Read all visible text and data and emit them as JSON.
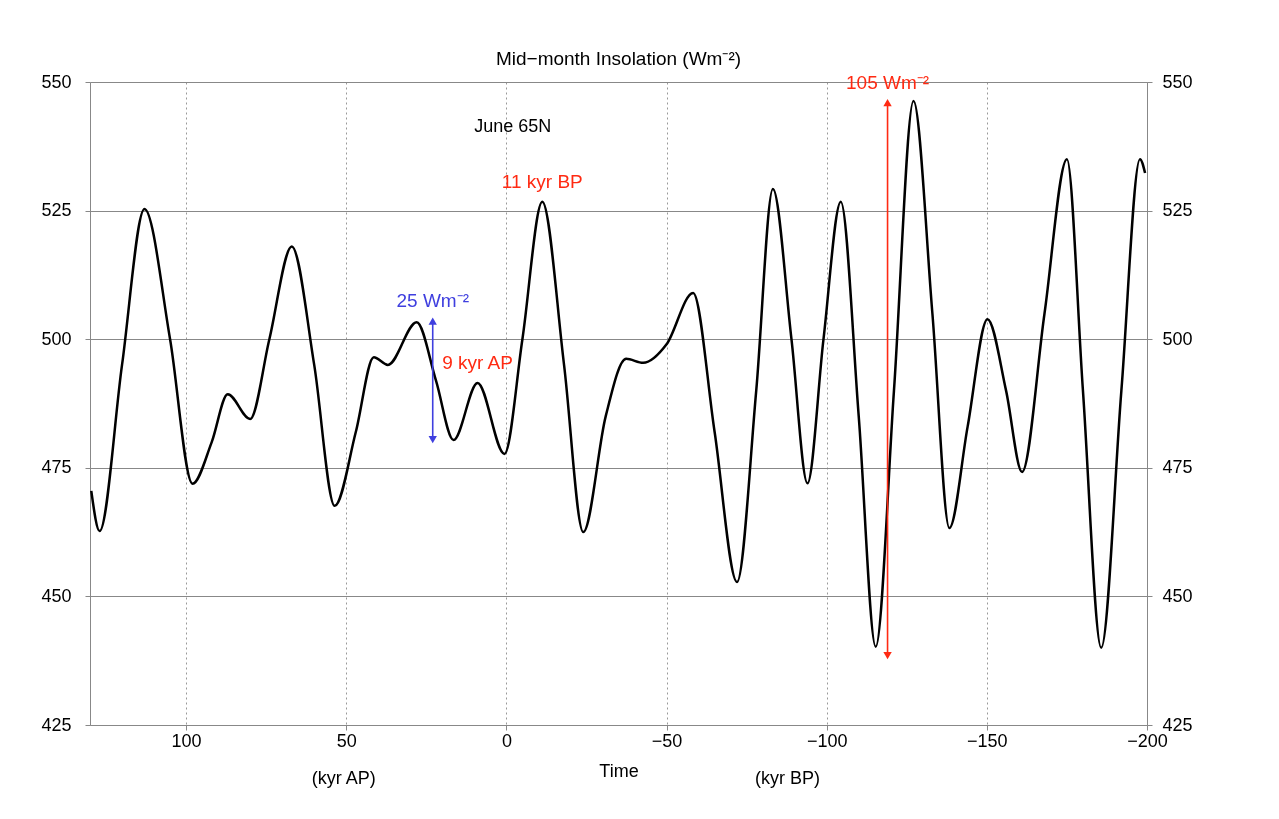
{
  "chart_data": {
    "type": "line",
    "title": "Mid−month Insolation (Wm⁻²)",
    "xlabel": "Time",
    "xlim": [
      130,
      -200
    ],
    "xticks": [
      100,
      50,
      0,
      {
        "value": -50,
        "label": "−50"
      },
      {
        "value": -100,
        "label": "−100"
      },
      {
        "value": -150,
        "label": "−150"
      },
      {
        "value": -200,
        "label": "−200"
      }
    ],
    "ylim": [
      425,
      550
    ],
    "yticks": [
      425,
      450,
      475,
      500,
      525,
      550
    ],
    "y2lim": [
      425,
      550
    ],
    "y2ticks": [
      425,
      450,
      475,
      500,
      525,
      550
    ],
    "grid": true,
    "line_style": "solid",
    "series": [
      {
        "color": "#000000",
        "x": [
          129.6,
          127,
          120,
          113,
          105,
          98,
          92,
          87,
          80,
          74,
          67,
          60,
          53.6,
          47,
          41.4,
          37,
          28,
          22,
          16.5,
          9,
          0.6,
          -5,
          -11.2,
          -18,
          -24,
          -31,
          -37.4,
          -42.7,
          -50,
          -58.3,
          -65,
          -72,
          -78,
          -83.2,
          -89,
          -94,
          -99,
          -104.4,
          -110,
          -115.3,
          -121,
          -127.1,
          -133,
          -138.3,
          -144,
          -150.2,
          -156,
          -161,
          -168,
          -175,
          -180,
          -185.7,
          -192,
          -197.8,
          -199.4
        ],
        "values": [
          470.5,
          462.7,
          495,
          525.3,
          500,
          471.9,
          480,
          489.3,
          484.5,
          500,
          518,
          495,
          467.6,
          482,
          496.5,
          495,
          503.3,
          492,
          480.4,
          491.5,
          477.7,
          500,
          526.7,
          495,
          462.5,
          485,
          496.2,
          495.4,
          499,
          509,
          482,
          452.8,
          490,
          529.2,
          500,
          472,
          500,
          526.7,
          485,
          440.2,
          490,
          546.3,
          505,
          463.3,
          483,
          503.9,
          490,
          474.2,
          505,
          535,
          490,
          440,
          490,
          535,
          532.3
        ]
      },
      {
        "color": "#3f3fdf",
        "type": "line",
        "marker": "triangle",
        "x": [
          23,
          23
        ],
        "values": [
          480.5,
          503.5
        ]
      },
      {
        "color": "#ff2a12",
        "type": "line",
        "marker": "triangle",
        "x": [
          -119,
          -119
        ],
        "values": [
          438.5,
          546
        ]
      }
    ],
    "annotations": [
      "June 65N",
      "(kyr AP)",
      "(kyr BP)",
      {
        "text": "11 kyr BP",
        "x": -11.2,
        "y": 526.7
      },
      {
        "text": "9 kyr AP",
        "x": 9,
        "y": 491.5
      },
      {
        "text": "25 Wm⁻²",
        "x": 23,
        "y": 503.5
      },
      {
        "text": "105 Wm⁻²",
        "x": -119,
        "y": 546
      }
    ]
  }
}
